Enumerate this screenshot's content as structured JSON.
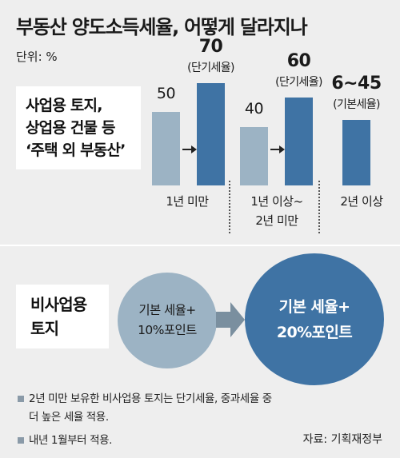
{
  "title": "부동산 양도소득세율, 어떻게 달라지나",
  "unit": "단위: %",
  "top_label": [
    "사업용 토지,",
    "상업용 건물 등",
    "‘주택 외 부동산’"
  ],
  "bottom_label": [
    "비사업용",
    "토지"
  ],
  "colors": {
    "current_bar": "#9cb3c4",
    "new_bar": "#3f73a4",
    "arrow": "#7a8f9f"
  },
  "chart_data": {
    "type": "bar",
    "title": "부동산 양도소득세율, 어떻게 달라지나",
    "unit": "%",
    "ylim": [
      0,
      80
    ],
    "groups": [
      {
        "category": [
          "1년 미만"
        ],
        "bars": [
          {
            "series": "current",
            "value": 50,
            "label": "50",
            "sublabel": ""
          },
          {
            "series": "new",
            "value": 70,
            "label": "70",
            "sublabel": "(단기세율)"
          }
        ]
      },
      {
        "category": [
          "1년 이상~",
          "2년 미만"
        ],
        "bars": [
          {
            "series": "current",
            "value": 40,
            "label": "40",
            "sublabel": ""
          },
          {
            "series": "new",
            "value": 60,
            "label": "60",
            "sublabel": "(단기세율)"
          }
        ]
      },
      {
        "category": [
          "2년 이상"
        ],
        "bars": [
          {
            "series": "new",
            "value": 45,
            "label": "6∼45",
            "sublabel": "(기본세율)"
          }
        ]
      }
    ]
  },
  "circles": {
    "current": [
      "기본 세율+",
      "10%포인트"
    ],
    "new": [
      "기본 세율+",
      "20%포인트"
    ]
  },
  "notes": [
    [
      "2년 미만 보유한 비사업용 토지는 단기세율, 중과세율 중",
      "더 높은 세율 적용."
    ],
    [
      "내년 1월부터 적용."
    ]
  ],
  "source": "자료: 기획재정부"
}
